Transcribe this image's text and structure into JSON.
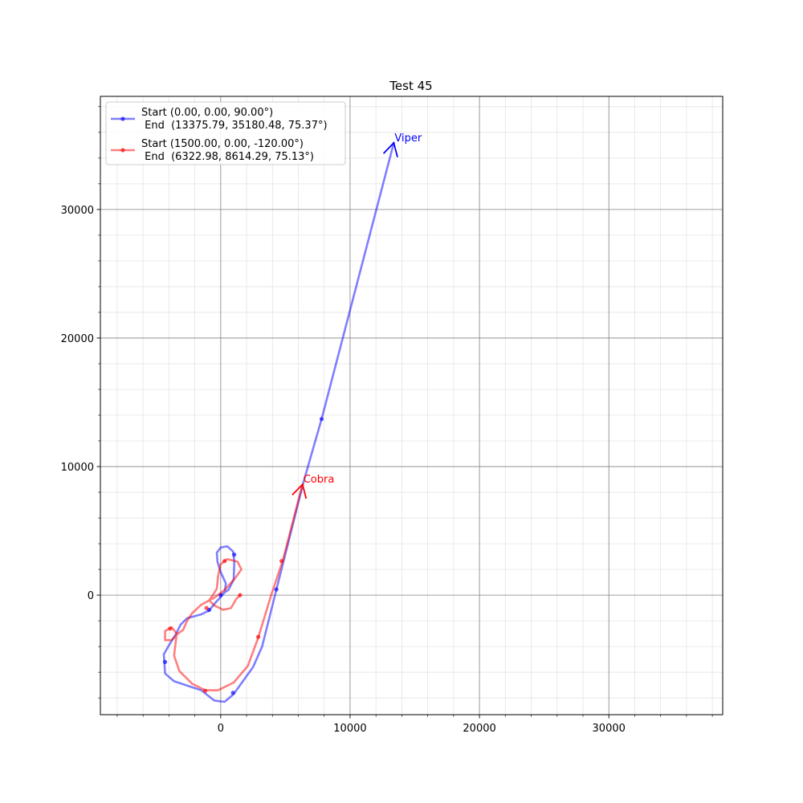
{
  "chart_data": {
    "type": "line",
    "title": "Test 45",
    "xlabel": "",
    "ylabel": "",
    "xlim": [
      -9300,
      38800
    ],
    "ylim": [
      -9300,
      38800
    ],
    "xticks": [
      0,
      10000,
      20000,
      30000
    ],
    "yticks": [
      0,
      10000,
      20000,
      30000
    ],
    "tick_labels": [
      "0",
      "10000",
      "20000",
      "30000"
    ],
    "grid": true,
    "minor_grid": true,
    "legend_placement": "upper-left",
    "series": [
      {
        "name": "Start (0.00, 0.00, 90.00°)\n End  (13375.79, 35180.48, 75.37°)",
        "legend_line1": "Start (0.00, 0.00, 90.00°)",
        "legend_line2": " End  (13375.79, 35180.48, 75.37°)",
        "color": "#0000ff",
        "label": "Viper",
        "end_heading_deg": 75.37,
        "path": [
          [
            0,
            0
          ],
          [
            600,
            400
          ],
          [
            1000,
            1200
          ],
          [
            1050,
            2600
          ],
          [
            950,
            3400
          ],
          [
            500,
            3800
          ],
          [
            0,
            3700
          ],
          [
            -300,
            3300
          ],
          [
            -250,
            2600
          ],
          [
            0,
            1800
          ],
          [
            400,
            900
          ],
          [
            300,
            200
          ],
          [
            -500,
            -700
          ],
          [
            -900,
            -1200
          ],
          [
            -1500,
            -1500
          ],
          [
            -2600,
            -1800
          ],
          [
            -3100,
            -2300
          ],
          [
            -3500,
            -3100
          ],
          [
            -4000,
            -3900
          ],
          [
            -4400,
            -4600
          ],
          [
            -4300,
            -6100
          ],
          [
            -3600,
            -6700
          ],
          [
            -1500,
            -7400
          ],
          [
            -500,
            -8200
          ],
          [
            300,
            -8300
          ],
          [
            1000,
            -7700
          ],
          [
            2500,
            -5600
          ],
          [
            3200,
            -4000
          ],
          [
            4300,
            400
          ],
          [
            6400,
            8800
          ],
          [
            7800,
            13700
          ],
          [
            13375.79,
            35180.48
          ]
        ],
        "markers": [
          [
            0,
            0
          ],
          [
            1050,
            3150
          ],
          [
            -900,
            -1150
          ],
          [
            -4300,
            -5200
          ],
          [
            950,
            -7600
          ],
          [
            4300,
            450
          ],
          [
            7800,
            13700
          ]
        ]
      },
      {
        "name": "Start (1500.00, 0.00, -120.00°)\n End  (6322.98, 8614.29, 75.13°)",
        "legend_line1": "Start (1500.00, 0.00, -120.00°)",
        "legend_line2": " End  (6322.98, 8614.29, 75.13°)",
        "color": "#ff0000",
        "label": "Cobra",
        "end_heading_deg": 75.13,
        "path": [
          [
            1500,
            0
          ],
          [
            1200,
            -300
          ],
          [
            800,
            -1000
          ],
          [
            200,
            -1150
          ],
          [
            -500,
            -800
          ],
          [
            -900,
            -400
          ],
          [
            -600,
            0
          ],
          [
            -300,
            500
          ],
          [
            -200,
            1500
          ],
          [
            0,
            2400
          ],
          [
            500,
            2800
          ],
          [
            1300,
            2600
          ],
          [
            1600,
            2000
          ],
          [
            1100,
            1300
          ],
          [
            300,
            400
          ],
          [
            -500,
            -200
          ],
          [
            -1500,
            -750
          ],
          [
            -2200,
            -1400
          ],
          [
            -2600,
            -2000
          ],
          [
            -2900,
            -2700
          ],
          [
            -3300,
            -3000
          ],
          [
            -3800,
            -3500
          ],
          [
            -4300,
            -3500
          ],
          [
            -4300,
            -2800
          ],
          [
            -3800,
            -2500
          ],
          [
            -3400,
            -3000
          ],
          [
            -3600,
            -4700
          ],
          [
            -3200,
            -5900
          ],
          [
            -2200,
            -6900
          ],
          [
            -1200,
            -7400
          ],
          [
            -200,
            -7400
          ],
          [
            1000,
            -6800
          ],
          [
            2100,
            -5500
          ],
          [
            2900,
            -3300
          ],
          [
            3900,
            0
          ],
          [
            4800,
            2700
          ],
          [
            6322.98,
            8614.29
          ]
        ],
        "markers": [
          [
            1500,
            0
          ],
          [
            -1100,
            -1000
          ],
          [
            -3900,
            -2600
          ],
          [
            300,
            2650
          ],
          [
            -1200,
            -7450
          ],
          [
            2900,
            -3250
          ],
          [
            4700,
            2650
          ]
        ]
      }
    ]
  }
}
